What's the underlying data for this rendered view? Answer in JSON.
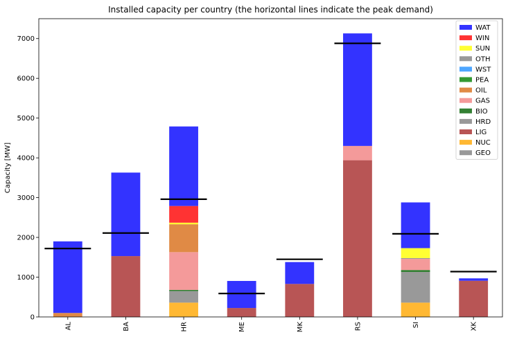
{
  "chart_data": {
    "type": "bar",
    "stacked": true,
    "title": "Installed capacity per country (the horizontal lines indicate the peak demand)",
    "xlabel": "",
    "ylabel": "Capacity [MW]",
    "ylim": [
      0,
      7500
    ],
    "yticks": [
      0,
      1000,
      2000,
      3000,
      4000,
      5000,
      6000,
      7000
    ],
    "categories": [
      "AL",
      "BA",
      "HR",
      "ME",
      "MK",
      "RS",
      "SI",
      "XK"
    ],
    "legend_position": "top-right",
    "stack_order": [
      "GEO",
      "NUC",
      "LIG",
      "HRD",
      "BIO",
      "GAS",
      "OIL",
      "PEA",
      "WST",
      "OTH",
      "SUN",
      "WIN",
      "WAT"
    ],
    "series": [
      {
        "name": "WAT",
        "color": "#3333ff",
        "values": [
          1800,
          2100,
          2000,
          680,
          550,
          2830,
          1150,
          60
        ]
      },
      {
        "name": "WIN",
        "color": "#ff3333",
        "values": [
          0,
          0,
          420,
          0,
          0,
          0,
          0,
          0
        ]
      },
      {
        "name": "SUN",
        "color": "#ffff33",
        "values": [
          0,
          0,
          40,
          0,
          0,
          0,
          250,
          0
        ]
      },
      {
        "name": "OTH",
        "color": "#999999",
        "values": [
          0,
          0,
          0,
          0,
          0,
          0,
          20,
          0
        ]
      },
      {
        "name": "WST",
        "color": "#4da6ff",
        "values": [
          0,
          0,
          0,
          0,
          0,
          0,
          0,
          0
        ]
      },
      {
        "name": "PEA",
        "color": "#339933",
        "values": [
          0,
          0,
          0,
          0,
          0,
          0,
          0,
          0
        ]
      },
      {
        "name": "OIL",
        "color": "#e08a45",
        "values": [
          100,
          0,
          700,
          0,
          0,
          0,
          0,
          0
        ]
      },
      {
        "name": "GAS",
        "color": "#f49a9a",
        "values": [
          0,
          0,
          950,
          0,
          0,
          360,
          280,
          0
        ]
      },
      {
        "name": "BIO",
        "color": "#338033",
        "values": [
          0,
          0,
          30,
          0,
          0,
          0,
          50,
          0
        ]
      },
      {
        "name": "HRD",
        "color": "#999999",
        "values": [
          0,
          0,
          290,
          0,
          0,
          0,
          770,
          0
        ]
      },
      {
        "name": "LIG",
        "color": "#b85555",
        "values": [
          0,
          1530,
          0,
          225,
          830,
          3940,
          0,
          910
        ]
      },
      {
        "name": "NUC",
        "color": "#ffb833",
        "values": [
          0,
          0,
          360,
          0,
          0,
          0,
          360,
          0
        ]
      },
      {
        "name": "GEO",
        "color": "#999999",
        "values": [
          0,
          0,
          0,
          0,
          0,
          0,
          0,
          0
        ]
      }
    ],
    "peak_demand": [
      1720,
      2110,
      2960,
      590,
      1450,
      6880,
      2090,
      1140
    ]
  }
}
